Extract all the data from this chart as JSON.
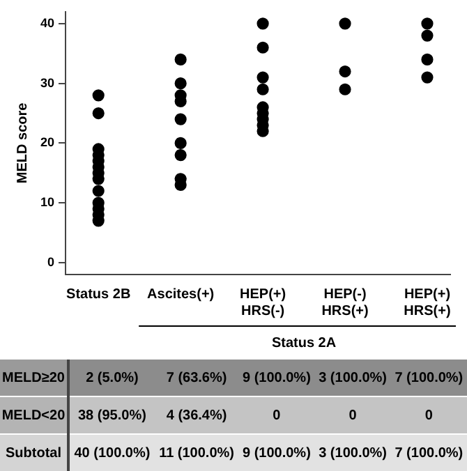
{
  "chart_data": {
    "type": "scatter",
    "ylabel": "MELD score",
    "categories": [
      "Status 2B",
      "Ascites(+)",
      "HEP(+)\nHRS(-)",
      "HEP(-)\nHRS(+)",
      "HEP(+)\nHRS(+)"
    ],
    "series": [
      {
        "color": "#000000",
        "x": [
          "Status 2B",
          "Status 2B",
          "Status 2B",
          "Status 2B",
          "Status 2B",
          "Status 2B",
          "Status 2B",
          "Status 2B",
          "Status 2B",
          "Status 2B",
          "Status 2B",
          "Status 2B",
          "Status 2B",
          "Ascites(+)",
          "Ascites(+)",
          "Ascites(+)",
          "Ascites(+)",
          "Ascites(+)",
          "Ascites(+)",
          "Ascites(+)",
          "Ascites(+)",
          "Ascites(+)",
          "HEP(+)\nHRS(-)",
          "HEP(+)\nHRS(-)",
          "HEP(+)\nHRS(-)",
          "HEP(+)\nHRS(-)",
          "HEP(+)\nHRS(-)",
          "HEP(+)\nHRS(-)",
          "HEP(+)\nHRS(-)",
          "HEP(+)\nHRS(-)",
          "HEP(+)\nHRS(-)",
          "HEP(-)\nHRS(+)",
          "HEP(-)\nHRS(+)",
          "HEP(-)\nHRS(+)",
          "HEP(+)\nHRS(+)",
          "HEP(+)\nHRS(+)",
          "HEP(+)\nHRS(+)",
          "HEP(+)\nHRS(+)"
        ],
        "values": [
          28,
          25,
          19,
          18,
          17,
          16,
          15,
          14,
          12,
          10,
          9,
          8,
          7,
          34,
          30,
          28,
          27,
          24,
          20,
          18,
          14,
          13,
          40,
          36,
          31,
          29,
          26,
          25,
          24,
          23,
          22,
          40,
          32,
          29,
          40,
          38,
          34,
          31
        ]
      }
    ],
    "ylim": [
      -2,
      42
    ],
    "yticks": [
      0,
      10,
      20,
      30,
      40
    ],
    "grid": false,
    "legend": false,
    "marker": "circle",
    "annotations": [
      "Status 2A",
      "MELD≥20",
      "2 (5.0%)",
      "7 (63.6%)",
      "9 (100.0%)",
      "3 (100.0%)",
      "7 (100.0%)",
      "MELD<20",
      "38 (95.0%)",
      "4 (36.4%)",
      "0",
      "0",
      "0",
      "Subtotal",
      "40 (100.0%)",
      "11 (100.0%)",
      "9 (100.0%)",
      "3 (100.0%)",
      "7 (100.0%)"
    ]
  }
}
